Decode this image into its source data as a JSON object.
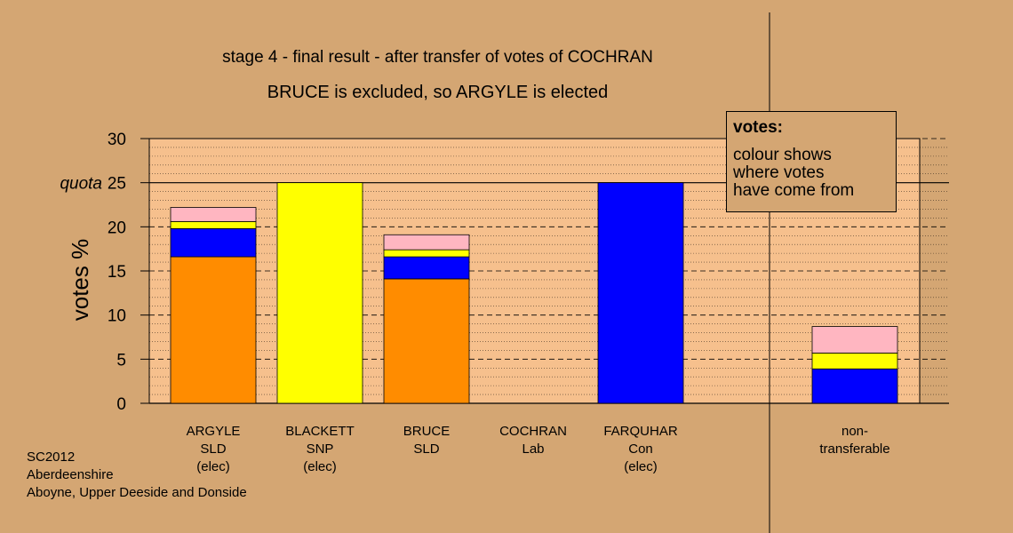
{
  "title": "stage 4 - final result - after transfer of votes of COCHRAN",
  "subtitle": "BRUCE is excluded, so ARGYLE is elected",
  "footer": {
    "line1": "SC2012",
    "line2": "Aberdeenshire",
    "line3": "Aboyne, Upper Deeside and Donside"
  },
  "legend": {
    "title": "votes:",
    "text": "colour shows\nwhere votes\nhave come from"
  },
  "colors": {
    "background": "#d4a673",
    "plot_area": "#f6c08d",
    "SLD": "#ff8c00",
    "SNP": "#ffff00",
    "Con": "#0000ff",
    "Lab": "#ffb6c1"
  },
  "chart_data": {
    "type": "bar",
    "stacked": true,
    "ylabel": "votes %",
    "ylim": [
      0,
      30
    ],
    "yticks": [
      "0",
      "5",
      "10",
      "15",
      "20",
      "25",
      "30"
    ],
    "quota": {
      "label": "quota",
      "value": 25
    },
    "grid": true,
    "categories": [
      [
        "ARGYLE",
        "SLD",
        "(elec)"
      ],
      [
        "BLACKETT",
        "SNP",
        "(elec)"
      ],
      [
        "BRUCE",
        "SLD"
      ],
      [
        "COCHRAN",
        "Lab"
      ],
      [
        "FARQUHAR",
        "Con",
        "(elec)"
      ],
      [
        "non-",
        "transferable"
      ]
    ],
    "stack_order": [
      "SLD",
      "Con",
      "SNP",
      "Lab"
    ],
    "stacks": [
      {
        "SLD": 16.6,
        "Con": 3.2,
        "SNP": 0.8,
        "Lab": 1.6
      },
      {
        "SNP": 25.0
      },
      {
        "SLD": 14.1,
        "Con": 2.5,
        "SNP": 0.8,
        "Lab": 1.7
      },
      {},
      {
        "Con": 25.0
      },
      {
        "Con": 3.9,
        "SNP": 1.8,
        "Lab": 3.0
      }
    ]
  }
}
